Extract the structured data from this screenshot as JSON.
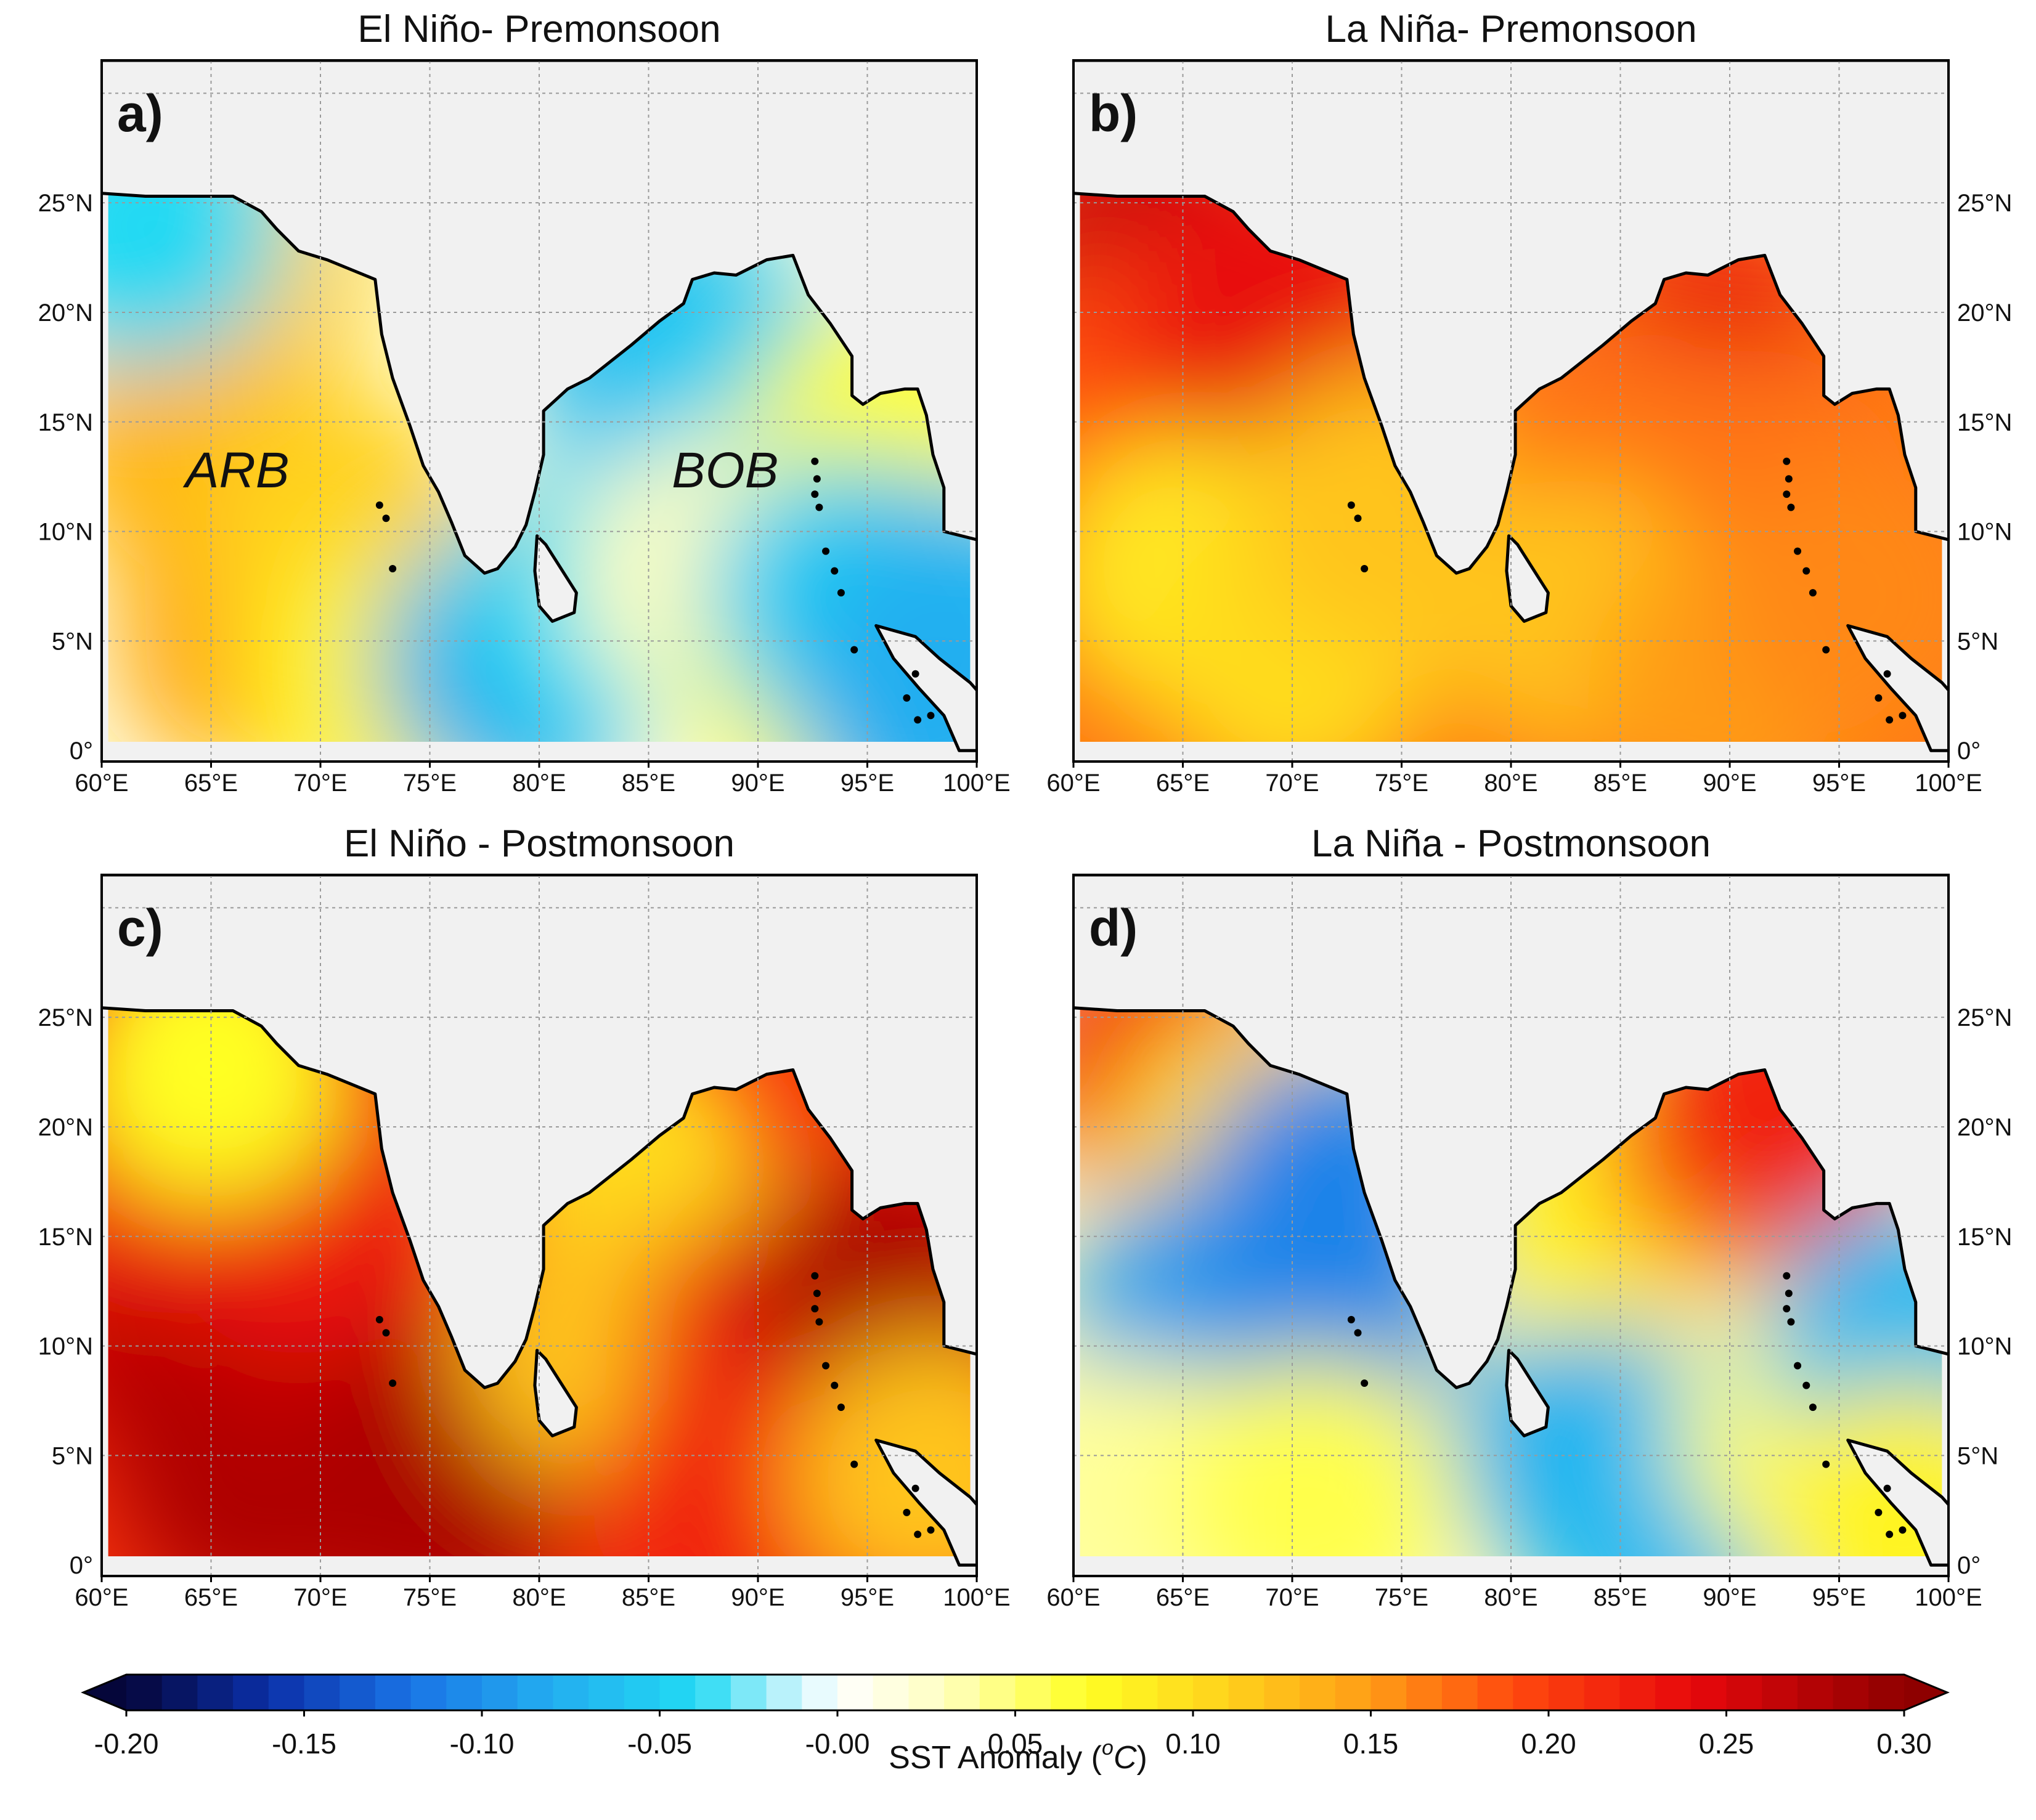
{
  "figure": {
    "colorbar": {
      "ticks": [
        "-0.20",
        "-0.15",
        "-0.10",
        "-0.05",
        "-0.00",
        "0.05",
        "0.10",
        "0.15",
        "0.20",
        "0.25",
        "0.30"
      ],
      "label_prefix": "SST Anomaly (",
      "label_sup": "o",
      "label_unit": "C",
      "label_suffix": ")"
    },
    "lon_labels": [
      "60°E",
      "65°E",
      "70°E",
      "75°E",
      "80°E",
      "85°E",
      "90°E",
      "95°E",
      "100°E"
    ],
    "lat_labels": [
      "0°",
      "5°N",
      "10°N",
      "15°N",
      "20°N",
      "25°N"
    ],
    "panels": [
      {
        "letter": "a)",
        "title": "El Niño- Premonsoon",
        "regions": [
          "ARB",
          "BOB"
        ]
      },
      {
        "letter": "b)",
        "title": "La Niña- Premonsoon",
        "regions": []
      },
      {
        "letter": "c)",
        "title": "El Niño - Postmonsoon",
        "regions": []
      },
      {
        "letter": "d)",
        "title": "La Niña - Postmonsoon",
        "regions": []
      }
    ]
  },
  "chart_data": {
    "type": "heatmap",
    "colorbar_range": [
      -0.2,
      0.3
    ],
    "colorbar_unit": "°C",
    "lon_range": [
      60,
      100
    ],
    "lat_range": [
      0,
      30
    ],
    "panels": [
      {
        "name": "El Niño- Premonsoon",
        "blobs": [
          {
            "lon": 66,
            "lat": 22,
            "value": 0.11
          },
          {
            "lon": 64,
            "lat": 14,
            "value": 0.13
          },
          {
            "lon": 67,
            "lat": 5,
            "value": 0.14
          },
          {
            "lon": 71,
            "lat": 10,
            "value": 0.11
          },
          {
            "lon": 73,
            "lat": 3,
            "value": 0.08
          },
          {
            "lon": 62,
            "lat": 24,
            "value": -0.04
          },
          {
            "lon": 86,
            "lat": 18,
            "value": -0.07
          },
          {
            "lon": 90,
            "lat": 16,
            "value": -0.05
          },
          {
            "lon": 79,
            "lat": 4,
            "value": -0.08
          },
          {
            "lon": 83,
            "lat": 7,
            "value": -0.04
          },
          {
            "lon": 88,
            "lat": 8,
            "value": 0.03
          },
          {
            "lon": 93,
            "lat": 3,
            "value": 0.06
          },
          {
            "lon": 96,
            "lat": 14,
            "value": 0.07
          },
          {
            "lon": 94,
            "lat": 7,
            "value": -0.05
          },
          {
            "lon": 99,
            "lat": 6,
            "value": -0.07
          },
          {
            "lon": 98,
            "lat": 2,
            "value": -0.08
          }
        ]
      },
      {
        "name": "La Niña- Premonsoon",
        "blobs": [
          {
            "lon": 63,
            "lat": 23,
            "value": 0.26
          },
          {
            "lon": 64,
            "lat": 17,
            "value": 0.19
          },
          {
            "lon": 69,
            "lat": 20,
            "value": 0.24
          },
          {
            "lon": 65,
            "lat": 8,
            "value": 0.09
          },
          {
            "lon": 70,
            "lat": 4,
            "value": 0.1
          },
          {
            "lon": 74,
            "lat": 11,
            "value": 0.12
          },
          {
            "lon": 89,
            "lat": 17,
            "value": 0.24
          },
          {
            "lon": 85,
            "lat": 13,
            "value": 0.17
          },
          {
            "lon": 93,
            "lat": 12,
            "value": 0.17
          },
          {
            "lon": 83,
            "lat": 6,
            "value": 0.12
          },
          {
            "lon": 90,
            "lat": 3,
            "value": 0.15
          },
          {
            "lon": 96,
            "lat": 7,
            "value": 0.16
          }
        ]
      },
      {
        "name": "El Niño - Postmonsoon",
        "blobs": [
          {
            "lon": 63,
            "lat": 11,
            "value": 0.27
          },
          {
            "lon": 67,
            "lat": 4,
            "value": 0.28
          },
          {
            "lon": 71,
            "lat": 9,
            "value": 0.27
          },
          {
            "lon": 75,
            "lat": 3,
            "value": 0.28
          },
          {
            "lon": 63,
            "lat": 18,
            "value": 0.22
          },
          {
            "lon": 69,
            "lat": 16,
            "value": 0.23
          },
          {
            "lon": 65,
            "lat": 23,
            "value": 0.07
          },
          {
            "lon": 84,
            "lat": 18,
            "value": 0.1
          },
          {
            "lon": 83,
            "lat": 10,
            "value": 0.12
          },
          {
            "lon": 91,
            "lat": 10,
            "value": 0.23
          },
          {
            "lon": 96,
            "lat": 12,
            "value": 0.28
          },
          {
            "lon": 89,
            "lat": 3,
            "value": 0.22
          },
          {
            "lon": 98,
            "lat": 4,
            "value": 0.12
          }
        ]
      },
      {
        "name": "La Niña - Postmonsoon",
        "blobs": [
          {
            "lon": 64,
            "lat": 23,
            "value": 0.22
          },
          {
            "lon": 68,
            "lat": 19,
            "value": 0.1
          },
          {
            "lon": 66,
            "lat": 11,
            "value": -0.09
          },
          {
            "lon": 71,
            "lat": 10,
            "value": -0.1
          },
          {
            "lon": 72,
            "lat": 17,
            "value": -0.11
          },
          {
            "lon": 63,
            "lat": 3,
            "value": 0.04
          },
          {
            "lon": 71,
            "lat": 3,
            "value": 0.06
          },
          {
            "lon": 84,
            "lat": 5,
            "value": -0.08
          },
          {
            "lon": 87,
            "lat": 2,
            "value": -0.07
          },
          {
            "lon": 84,
            "lat": 17,
            "value": 0.08
          },
          {
            "lon": 90,
            "lat": 19,
            "value": 0.15
          },
          {
            "lon": 92,
            "lat": 21,
            "value": 0.22
          },
          {
            "lon": 94,
            "lat": 6,
            "value": 0.05
          },
          {
            "lon": 98,
            "lat": 10,
            "value": -0.07
          },
          {
            "lon": 98,
            "lat": 2,
            "value": 0.08
          }
        ]
      }
    ]
  }
}
